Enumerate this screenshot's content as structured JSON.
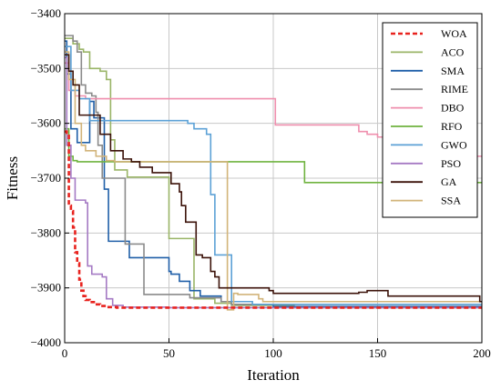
{
  "chart_data": {
    "type": "line",
    "xlabel": "Iteration",
    "ylabel": "Fitness",
    "xlim": [
      0,
      200
    ],
    "ylim": [
      -4000,
      -3400
    ],
    "xticks": [
      0,
      50,
      100,
      150,
      200
    ],
    "yticks": [
      -4000,
      -3900,
      -3800,
      -3700,
      -3600,
      -3500,
      -3400
    ],
    "grid": true,
    "legend_position": "top-right",
    "series": [
      {
        "name": "WOA",
        "color": "#e8231f",
        "dash": true,
        "width": 2.6,
        "steps": [
          [
            0,
            -3615
          ],
          [
            1,
            -3620
          ],
          [
            2,
            -3750
          ],
          [
            3,
            -3760
          ],
          [
            4,
            -3790
          ],
          [
            5,
            -3835
          ],
          [
            6,
            -3855
          ],
          [
            7,
            -3885
          ],
          [
            8,
            -3905
          ],
          [
            9,
            -3915
          ],
          [
            10,
            -3922
          ],
          [
            12,
            -3926
          ],
          [
            14,
            -3930
          ],
          [
            17,
            -3933
          ],
          [
            20,
            -3935
          ],
          [
            25,
            -3936
          ],
          [
            200,
            -3936
          ]
        ]
      },
      {
        "name": "ACO",
        "color": "#9ab567",
        "steps": [
          [
            0,
            -3445
          ],
          [
            4,
            -3455
          ],
          [
            7,
            -3465
          ],
          [
            9,
            -3470
          ],
          [
            12,
            -3500
          ],
          [
            17,
            -3505
          ],
          [
            20,
            -3520
          ],
          [
            22,
            -3630
          ],
          [
            24,
            -3685
          ],
          [
            30,
            -3698
          ],
          [
            48,
            -3698
          ],
          [
            50,
            -3810
          ],
          [
            60,
            -3810
          ],
          [
            62,
            -3920
          ],
          [
            72,
            -3928
          ],
          [
            80,
            -3932
          ],
          [
            110,
            -3936
          ],
          [
            200,
            -3936
          ]
        ]
      },
      {
        "name": "SMA",
        "color": "#1f5fa8",
        "steps": [
          [
            0,
            -3450
          ],
          [
            1,
            -3510
          ],
          [
            3,
            -3610
          ],
          [
            6,
            -3635
          ],
          [
            12,
            -3560
          ],
          [
            14,
            -3590
          ],
          [
            19,
            -3720
          ],
          [
            21,
            -3815
          ],
          [
            30,
            -3815
          ],
          [
            31,
            -3845
          ],
          [
            49,
            -3845
          ],
          [
            50,
            -3870
          ],
          [
            51,
            -3875
          ],
          [
            55,
            -3888
          ],
          [
            60,
            -3905
          ],
          [
            65,
            -3915
          ],
          [
            75,
            -3925
          ],
          [
            80,
            -3930
          ],
          [
            100,
            -3934
          ],
          [
            200,
            -3934
          ]
        ]
      },
      {
        "name": "RIME",
        "color": "#8a8a8a",
        "steps": [
          [
            0,
            -3440
          ],
          [
            4,
            -3450
          ],
          [
            6,
            -3470
          ],
          [
            8,
            -3530
          ],
          [
            10,
            -3545
          ],
          [
            13,
            -3550
          ],
          [
            15,
            -3580
          ],
          [
            16,
            -3640
          ],
          [
            18,
            -3700
          ],
          [
            28,
            -3700
          ],
          [
            29,
            -3820
          ],
          [
            37,
            -3820
          ],
          [
            38,
            -3912
          ],
          [
            55,
            -3912
          ],
          [
            60,
            -3918
          ],
          [
            75,
            -3925
          ],
          [
            80,
            -3930
          ],
          [
            200,
            -3930
          ]
        ]
      },
      {
        "name": "DBO",
        "color": "#ef8fae",
        "steps": [
          [
            0,
            -3490
          ],
          [
            2,
            -3540
          ],
          [
            5,
            -3550
          ],
          [
            10,
            -3555
          ],
          [
            100,
            -3555
          ],
          [
            101,
            -3603
          ],
          [
            140,
            -3603
          ],
          [
            141,
            -3615
          ],
          [
            145,
            -3620
          ],
          [
            150,
            -3625
          ],
          [
            155,
            -3630
          ],
          [
            160,
            -3640
          ],
          [
            165,
            -3660
          ],
          [
            200,
            -3660
          ]
        ]
      },
      {
        "name": "RFO",
        "color": "#6fb33f",
        "steps": [
          [
            0,
            -3610
          ],
          [
            2,
            -3660
          ],
          [
            4,
            -3668
          ],
          [
            6,
            -3670
          ],
          [
            114,
            -3670
          ],
          [
            115,
            -3708
          ],
          [
            200,
            -3708
          ]
        ]
      },
      {
        "name": "GWO",
        "color": "#5ca1d6",
        "steps": [
          [
            0,
            -3460
          ],
          [
            3,
            -3540
          ],
          [
            7,
            -3555
          ],
          [
            12,
            -3595
          ],
          [
            57,
            -3595
          ],
          [
            59,
            -3600
          ],
          [
            62,
            -3610
          ],
          [
            68,
            -3620
          ],
          [
            70,
            -3730
          ],
          [
            72,
            -3840
          ],
          [
            79,
            -3840
          ],
          [
            80,
            -3925
          ],
          [
            90,
            -3930
          ],
          [
            200,
            -3930
          ]
        ]
      },
      {
        "name": "PSO",
        "color": "#a57ac4",
        "steps": [
          [
            0,
            -3480
          ],
          [
            1,
            -3640
          ],
          [
            3,
            -3700
          ],
          [
            5,
            -3740
          ],
          [
            10,
            -3745
          ],
          [
            11,
            -3860
          ],
          [
            13,
            -3875
          ],
          [
            18,
            -3880
          ],
          [
            20,
            -3920
          ],
          [
            23,
            -3932
          ],
          [
            28,
            -3935
          ],
          [
            50,
            -3936
          ],
          [
            200,
            -3936
          ]
        ]
      },
      {
        "name": "GA",
        "color": "#3b1209",
        "steps": [
          [
            0,
            -3475
          ],
          [
            2,
            -3505
          ],
          [
            4,
            -3530
          ],
          [
            7,
            -3585
          ],
          [
            15,
            -3585
          ],
          [
            17,
            -3620
          ],
          [
            22,
            -3650
          ],
          [
            28,
            -3665
          ],
          [
            32,
            -3670
          ],
          [
            36,
            -3680
          ],
          [
            42,
            -3690
          ],
          [
            50,
            -3690
          ],
          [
            51,
            -3710
          ],
          [
            55,
            -3725
          ],
          [
            56,
            -3750
          ],
          [
            58,
            -3780
          ],
          [
            62,
            -3780
          ],
          [
            63,
            -3840
          ],
          [
            66,
            -3845
          ],
          [
            70,
            -3870
          ],
          [
            72,
            -3880
          ],
          [
            74,
            -3900
          ],
          [
            96,
            -3900
          ],
          [
            98,
            -3905
          ],
          [
            100,
            -3910
          ],
          [
            140,
            -3910
          ],
          [
            141,
            -3908
          ],
          [
            145,
            -3905
          ],
          [
            150,
            -3905
          ],
          [
            155,
            -3915
          ],
          [
            198,
            -3915
          ],
          [
            199,
            -3925
          ],
          [
            200,
            -3925
          ]
        ]
      },
      {
        "name": "SSA",
        "color": "#d2b47a",
        "steps": [
          [
            0,
            -3470
          ],
          [
            2,
            -3520
          ],
          [
            5,
            -3600
          ],
          [
            8,
            -3640
          ],
          [
            10,
            -3650
          ],
          [
            15,
            -3660
          ],
          [
            20,
            -3668
          ],
          [
            24,
            -3670
          ],
          [
            77,
            -3670
          ],
          [
            78,
            -3940
          ],
          [
            80,
            -3940
          ],
          [
            81,
            -3910
          ],
          [
            83,
            -3912
          ],
          [
            93,
            -3920
          ],
          [
            95,
            -3925
          ],
          [
            200,
            -3925
          ]
        ]
      }
    ]
  }
}
